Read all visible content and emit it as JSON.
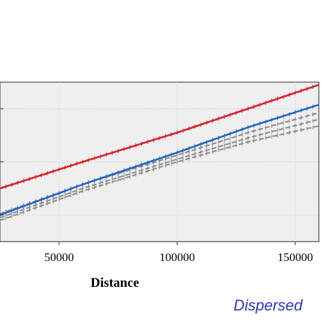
{
  "chart_data": {
    "type": "line",
    "xlabel": "Distance",
    "ylabel": "",
    "xlim": [
      25000,
      160000
    ],
    "x_ticks": [
      50000,
      100000,
      150000
    ],
    "x_tick_labels": [
      "50000",
      "100000",
      "150000"
    ],
    "grid": true,
    "background_color": "#efefef",
    "series": [
      {
        "color": "#d42027",
        "style": "solid",
        "x": [
          25000,
          60000,
          100000,
          130000,
          160000
        ],
        "y": [
          0.2,
          0.4,
          0.62,
          0.8,
          0.98
        ]
      },
      {
        "color": "#2563c4",
        "style": "solid",
        "x": [
          25000,
          60000,
          100000,
          130000,
          160000
        ],
        "y": [
          0.0,
          0.23,
          0.47,
          0.66,
          0.83
        ]
      },
      {
        "color": "#8a8a8a",
        "style": "dashed",
        "x": [
          25000,
          60000,
          100000,
          130000,
          160000
        ],
        "y": [
          0.01,
          0.23,
          0.45,
          0.62,
          0.77
        ]
      },
      {
        "color": "#8a8a8a",
        "style": "dashed",
        "x": [
          25000,
          60000,
          100000,
          130000,
          160000
        ],
        "y": [
          -0.02,
          0.2,
          0.42,
          0.58,
          0.72
        ]
      },
      {
        "color": "#8a8a8a",
        "style": "dashed",
        "x": [
          25000,
          60000,
          100000,
          130000,
          160000
        ],
        "y": [
          -0.04,
          0.18,
          0.4,
          0.55,
          0.67
        ]
      }
    ]
  },
  "panel": {
    "label": "Dispersed"
  }
}
